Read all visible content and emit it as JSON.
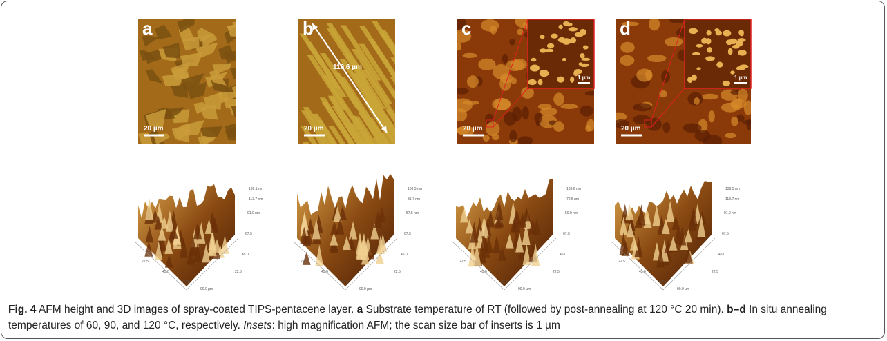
{
  "panels": [
    {
      "label": "a",
      "scale_bar": "20 µm",
      "axis_labels": [
        "136.1 nm",
        "113.7 nm",
        "91.0 nm",
        "67.5",
        "45.0",
        "22.5",
        "22.5",
        "45.0",
        "67.5",
        "90.0 µm"
      ]
    },
    {
      "label": "b",
      "scale_bar": "20 µm",
      "annotation": "110.6 µm",
      "axis_labels": [
        "106.3 nm",
        "81.7 nm",
        "57.5 nm",
        "67.5",
        "45.0",
        "22.5",
        "22.5",
        "45.0",
        "67.5",
        "90.0 µm"
      ]
    },
    {
      "label": "c",
      "scale_bar": "20 µm",
      "inset_scale_bar": "1 µm",
      "axis_labels": [
        "103.6 nm",
        "79.5 nm",
        "50.0 nm",
        "67.5",
        "45.0",
        "22.5",
        "22.5",
        "45.0",
        "67.5",
        "90.0 µm"
      ]
    },
    {
      "label": "d",
      "scale_bar": "20 µm",
      "inset_scale_bar": "1 µm",
      "axis_labels": [
        "136.5 nm",
        "113.7 nm",
        "91.0 nm",
        "67.5",
        "45.0",
        "22.5",
        "22.5",
        "45.0",
        "67.5",
        "90.0 µm"
      ]
    }
  ],
  "caption": {
    "figure_label": "Fig. 4",
    "title": "AFM height and 3D images of spray-coated TIPS-pentacene layer.",
    "parts": [
      {
        "label": "a",
        "text": "Substrate temperature of RT (followed by post-annealing at 120 °C 20 min)."
      },
      {
        "label": "b–d",
        "text": "In situ annealing temperatures of 60, 90, and 120 °C, respectively."
      },
      {
        "label": "Insets",
        "text": ": high magnification AFM; the scan size bar of inserts is 1 µm"
      }
    ]
  }
}
